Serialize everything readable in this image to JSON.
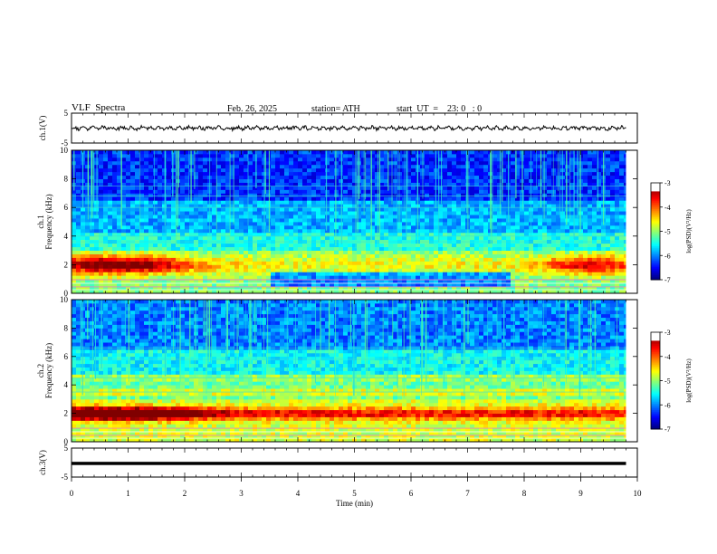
{
  "header": {
    "title": "VLF  Spectra",
    "date": "Feb. 26, 2025",
    "station": "station= ATH",
    "start": "start  UT  =    23: 0   : 0"
  },
  "chart_data": [
    {
      "type": "line",
      "ylabel": "ch.1(V)",
      "ylim": [
        -5,
        5
      ],
      "y_ticks": [
        "5",
        "-5"
      ],
      "xlim": [
        0,
        10
      ]
    },
    {
      "type": "heatmap",
      "ylabel": "ch.1\nFrequency (kHz)",
      "ylim": [
        0,
        10
      ],
      "y_ticks": [
        "0",
        "2",
        "4",
        "6",
        "8",
        "10"
      ],
      "xlim": [
        0,
        10
      ],
      "colorbar": {
        "label": "log(PSD)(V²/Hz)",
        "range": [
          -7,
          -3
        ],
        "ticks": [
          "-3",
          "-4",
          "-5",
          "-6",
          "-7"
        ]
      }
    },
    {
      "type": "heatmap",
      "ylabel": "ch.2\nFrequency (kHz)",
      "ylim": [
        0,
        10
      ],
      "y_ticks": [
        "0",
        "2",
        "4",
        "6",
        "8",
        "10"
      ],
      "xlim": [
        0,
        10
      ],
      "colorbar": {
        "label": "log(PSD)(V²/Hz)",
        "range": [
          -7,
          -3
        ],
        "ticks": [
          "-3",
          "-4",
          "-5",
          "-6",
          "-7"
        ]
      }
    },
    {
      "type": "line",
      "ylabel": "ch.3(V)",
      "ylim": [
        -5,
        5
      ],
      "y_ticks": [
        "5",
        "-5"
      ],
      "xlim": [
        0,
        10
      ],
      "xlabel": "Time  (min)",
      "x_ticks": [
        "0",
        "1",
        "2",
        "3",
        "4",
        "5",
        "6",
        "7",
        "8",
        "9",
        "10"
      ]
    }
  ]
}
